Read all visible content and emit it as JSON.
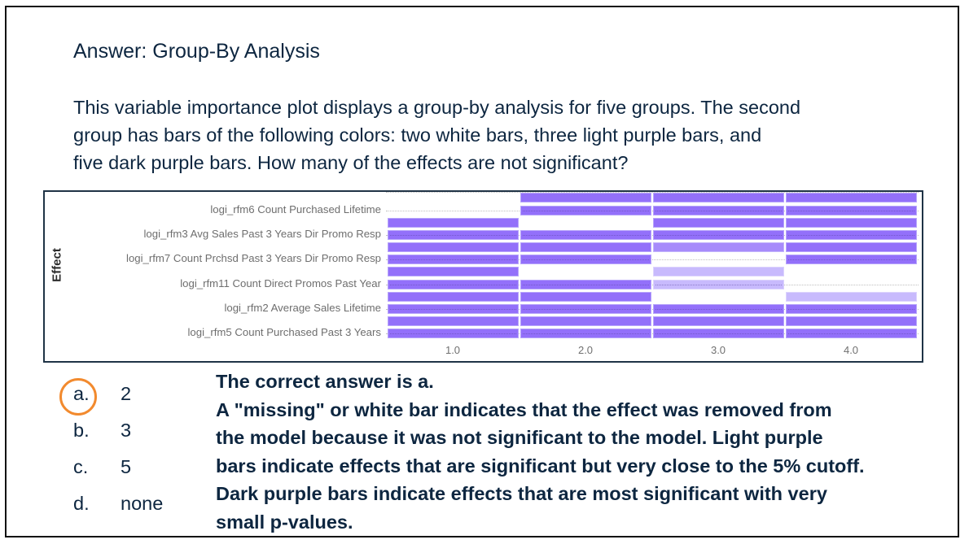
{
  "slide": {
    "title": "Answer: Group-By Analysis",
    "question_lines": [
      "This variable importance plot displays a group-by analysis for five groups. The second",
      "group has bars of the following colors: two white bars, three light purple bars, and",
      "five dark purple bars. How many of the effects are not significant?"
    ],
    "options": [
      {
        "letter": "a.",
        "value": "2",
        "selected": true
      },
      {
        "letter": "b.",
        "value": "3",
        "selected": false
      },
      {
        "letter": "c.",
        "value": "5",
        "selected": false
      },
      {
        "letter": "d.",
        "value": "none",
        "selected": false
      }
    ],
    "explanation_lines": [
      "The correct answer is a.",
      "A \"missing\" or white bar indicates that the effect was removed from",
      "the model because it was not significant to the model. Light purple",
      "bars indicate effects that are significant but very close to the 5% cutoff.",
      "Dark purple bars indicate effects that are most significant with very",
      "small p-values."
    ],
    "highlight_color": "#f28a2e",
    "text_color": "#0d2640"
  },
  "chart_data": {
    "type": "heatmap",
    "title": "",
    "xlabel": "",
    "ylabel": "Effect",
    "x_ticks": [
      "1.0",
      "2.0",
      "3.0",
      "4.0"
    ],
    "effects": [
      "logi_rfm6 Count Purchased Lifetime",
      "logi_rfm3 Avg Sales Past 3 Years Dir Promo Resp",
      "logi_rfm7 Count Prchsd Past 3 Years Dir Promo Resp",
      "logi_rfm11 Count Direct Promos Past Year",
      "logi_rfm2 Average Sales Lifetime",
      "logi_rfm5 Count Purchased Past 3 Years"
    ],
    "rows_per_effect": 2,
    "legend": {
      "dark": "most significant (very small p-value)",
      "light": "significant but close to 5% cutoff",
      "empty": "not significant / removed"
    },
    "colors": {
      "dark": "#9370fa",
      "medium": "#a78bfb",
      "light": "#c8bafd",
      "empty": "#ffffff"
    },
    "grid": [
      [
        "empty",
        "dark",
        "dark",
        "dark"
      ],
      [
        "empty",
        "dark",
        "dark",
        "dark"
      ],
      [
        "dark",
        "empty",
        "dark",
        "dark"
      ],
      [
        "dark",
        "dark",
        "dark",
        "dark"
      ],
      [
        "dark",
        "dark",
        "medium",
        "dark"
      ],
      [
        "dark",
        "dark",
        "empty",
        "dark"
      ],
      [
        "dark",
        "empty",
        "light",
        "empty"
      ],
      [
        "dark",
        "dark",
        "light",
        "empty"
      ],
      [
        "dark",
        "dark",
        "empty",
        "light"
      ],
      [
        "dark",
        "dark",
        "dark",
        "dark"
      ],
      [
        "dark",
        "dark",
        "dark",
        "dark"
      ],
      [
        "dark",
        "dark",
        "dark",
        "dark"
      ]
    ]
  }
}
